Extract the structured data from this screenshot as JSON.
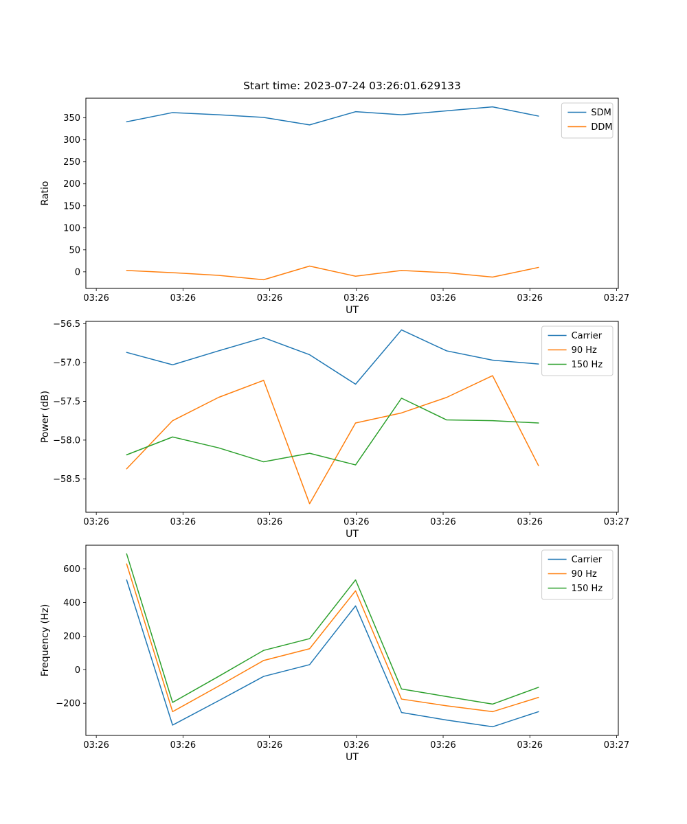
{
  "figure": {
    "title": "Start time: 2023-07-24 03:26:01.629133",
    "background": "#ffffff"
  },
  "palette": {
    "blue": "#1f77b4",
    "orange": "#ff7f0e",
    "green": "#2ca02c",
    "axis": "#000000",
    "legend_edge": "#cccccc"
  },
  "chart_data": [
    {
      "type": "line",
      "name": "ratio-chart",
      "title": "Start time: 2023-07-24 03:26:01.629133",
      "xlabel": "UT",
      "ylabel": "Ratio",
      "grid": false,
      "legend_position": "upper right",
      "xlim": [
        -1.2,
        60.2
      ],
      "ylim": [
        -37.7,
        394.7
      ],
      "x_unit": "seconds after 03:26:00",
      "x": [
        3.5,
        8.8,
        14.1,
        19.3,
        24.6,
        29.9,
        35.2,
        40.4,
        45.7,
        51.0
      ],
      "x_ticks": [
        {
          "value": 0,
          "label": "03:26"
        },
        {
          "value": 10,
          "label": "03:26"
        },
        {
          "value": 20,
          "label": "03:26"
        },
        {
          "value": 30,
          "label": "03:26"
        },
        {
          "value": 40,
          "label": "03:26"
        },
        {
          "value": 50,
          "label": "03:26"
        },
        {
          "value": 60,
          "label": "03:27"
        }
      ],
      "y_ticks": [
        {
          "value": 0,
          "label": "0"
        },
        {
          "value": 50,
          "label": "50"
        },
        {
          "value": 100,
          "label": "100"
        },
        {
          "value": 150,
          "label": "150"
        },
        {
          "value": 200,
          "label": "200"
        },
        {
          "value": 250,
          "label": "250"
        },
        {
          "value": 300,
          "label": "300"
        },
        {
          "value": 350,
          "label": "350"
        }
      ],
      "series": [
        {
          "name": "SDM",
          "color": "#1f77b4",
          "values": [
            341,
            362,
            357,
            351,
            334,
            364,
            357,
            366,
            375,
            354
          ]
        },
        {
          "name": "DDM",
          "color": "#ff7f0e",
          "values": [
            3,
            -2,
            -8,
            -18,
            13,
            -10,
            3,
            -2,
            -12,
            10
          ]
        }
      ]
    },
    {
      "type": "line",
      "name": "power-chart",
      "title": "",
      "xlabel": "UT",
      "ylabel": "Power (dB)",
      "grid": false,
      "legend_position": "upper right",
      "xlim": [
        -1.2,
        60.2
      ],
      "ylim": [
        -58.93,
        -56.47
      ],
      "x_unit": "seconds after 03:26:00",
      "x": [
        3.5,
        8.8,
        14.1,
        19.3,
        24.6,
        29.9,
        35.2,
        40.4,
        45.7,
        51.0
      ],
      "x_ticks": [
        {
          "value": 0,
          "label": "03:26"
        },
        {
          "value": 10,
          "label": "03:26"
        },
        {
          "value": 20,
          "label": "03:26"
        },
        {
          "value": 30,
          "label": "03:26"
        },
        {
          "value": 40,
          "label": "03:26"
        },
        {
          "value": 50,
          "label": "03:26"
        },
        {
          "value": 60,
          "label": "03:27"
        }
      ],
      "y_ticks": [
        {
          "value": -58.5,
          "label": "−58.5"
        },
        {
          "value": -58.0,
          "label": "−58.0"
        },
        {
          "value": -57.5,
          "label": "−57.5"
        },
        {
          "value": -57.0,
          "label": "−57.0"
        },
        {
          "value": -56.5,
          "label": "−56.5"
        }
      ],
      "series": [
        {
          "name": "Carrier",
          "color": "#1f77b4",
          "values": [
            -56.87,
            -57.03,
            -56.85,
            -56.68,
            -56.9,
            -57.28,
            -56.58,
            -56.85,
            -56.97,
            -57.02
          ]
        },
        {
          "name": "90 Hz",
          "color": "#ff7f0e",
          "values": [
            -58.37,
            -57.75,
            -57.45,
            -57.23,
            -58.82,
            -57.78,
            -57.65,
            -57.45,
            -57.17,
            -58.33
          ]
        },
        {
          "name": "150 Hz",
          "color": "#2ca02c",
          "values": [
            -58.19,
            -57.96,
            -58.1,
            -58.28,
            -58.17,
            -58.32,
            -57.46,
            -57.74,
            -57.75,
            -57.78
          ]
        }
      ]
    },
    {
      "type": "line",
      "name": "frequency-chart",
      "title": "",
      "xlabel": "UT",
      "ylabel": "Frequency (Hz)",
      "grid": false,
      "legend_position": "upper right",
      "xlim": [
        -1.2,
        60.2
      ],
      "ylim": [
        -391.5,
        741.5
      ],
      "x_unit": "seconds after 03:26:00",
      "x": [
        3.5,
        8.8,
        14.1,
        19.3,
        24.6,
        29.9,
        35.2,
        40.4,
        45.7,
        51.0
      ],
      "x_ticks": [
        {
          "value": 0,
          "label": "03:26"
        },
        {
          "value": 10,
          "label": "03:26"
        },
        {
          "value": 20,
          "label": "03:26"
        },
        {
          "value": 30,
          "label": "03:26"
        },
        {
          "value": 40,
          "label": "03:26"
        },
        {
          "value": 50,
          "label": "03:26"
        },
        {
          "value": 60,
          "label": "03:27"
        }
      ],
      "y_ticks": [
        {
          "value": -200,
          "label": "−200"
        },
        {
          "value": 0,
          "label": "0"
        },
        {
          "value": 200,
          "label": "200"
        },
        {
          "value": 400,
          "label": "400"
        },
        {
          "value": 600,
          "label": "600"
        }
      ],
      "series": [
        {
          "name": "Carrier",
          "color": "#1f77b4",
          "values": [
            535,
            -330,
            -185,
            -40,
            30,
            380,
            -255,
            -300,
            -340,
            -250
          ]
        },
        {
          "name": "90 Hz",
          "color": "#ff7f0e",
          "values": [
            630,
            -250,
            -98,
            55,
            125,
            470,
            -175,
            -215,
            -250,
            -165
          ]
        },
        {
          "name": "150 Hz",
          "color": "#2ca02c",
          "values": [
            690,
            -195,
            -40,
            115,
            185,
            535,
            -115,
            -160,
            -205,
            -105
          ]
        }
      ]
    }
  ]
}
